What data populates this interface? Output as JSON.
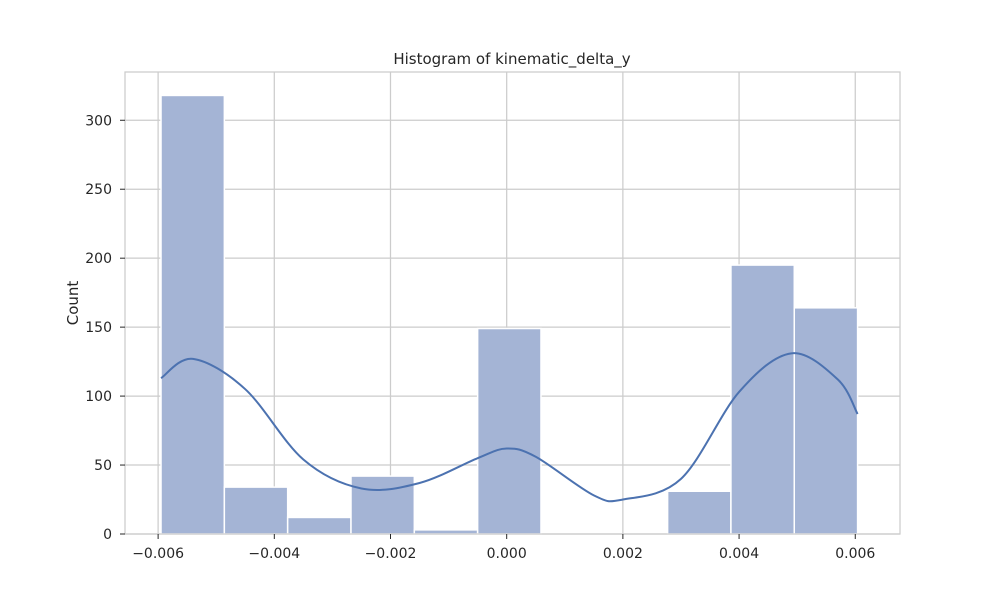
{
  "chart_data": {
    "type": "bar",
    "title": "Histogram of kinematic_delta_y",
    "xlabel": "",
    "ylabel": "Count",
    "xlim": [
      -0.00657,
      0.00677
    ],
    "ylim": [
      0,
      335
    ],
    "xticks": [
      -0.006,
      -0.004,
      -0.002,
      0.0,
      0.002,
      0.004,
      0.006
    ],
    "xtick_labels": [
      "−0.006",
      "−0.004",
      "−0.002",
      "0.000",
      "0.002",
      "0.004",
      "0.006"
    ],
    "yticks": [
      0,
      50,
      100,
      150,
      200,
      250,
      300
    ],
    "ytick_labels": [
      "0",
      "50",
      "100",
      "150",
      "200",
      "250",
      "300"
    ],
    "grid": true,
    "bin_edges": [
      -0.00595,
      -0.00486,
      -0.00377,
      -0.00268,
      -0.00159,
      -0.0005,
      0.00059,
      0.00168,
      0.00277,
      0.00386,
      0.00495,
      0.00604
    ],
    "counts": [
      318,
      34,
      12,
      42,
      3,
      149,
      0,
      0,
      31,
      195,
      164
    ],
    "kde": {
      "x": [
        -0.00595,
        -0.0054,
        -0.0045,
        -0.0035,
        -0.0025,
        -0.0015,
        -0.0005,
        0.0,
        0.0005,
        0.0015,
        0.002,
        0.003,
        0.004,
        0.0049,
        0.0057,
        0.00604
      ],
      "y": [
        113,
        127,
        105,
        54,
        33,
        37,
        55,
        62,
        56,
        28,
        25,
        40,
        103,
        131,
        112,
        87
      ]
    },
    "colors": {
      "bar_fill": "#a4b4d5",
      "bar_stroke": "#ffffff",
      "kde_line": "#4c72b0",
      "grid": "#cccccc",
      "spine": "#cccccc"
    }
  }
}
